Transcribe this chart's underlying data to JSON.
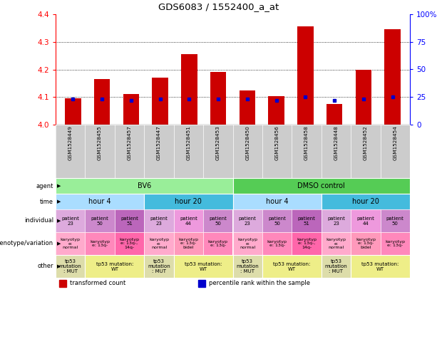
{
  "title": "GDS6083 / 1552400_a_at",
  "samples": [
    "GSM1528449",
    "GSM1528455",
    "GSM1528457",
    "GSM1528447",
    "GSM1528451",
    "GSM1528453",
    "GSM1528450",
    "GSM1528456",
    "GSM1528458",
    "GSM1528448",
    "GSM1528452",
    "GSM1528454"
  ],
  "red_values": [
    4.095,
    4.165,
    4.11,
    4.17,
    4.255,
    4.19,
    4.125,
    4.103,
    4.355,
    4.075,
    4.2,
    4.345
  ],
  "blue_pct": [
    23,
    23,
    22,
    23,
    23,
    23,
    23,
    22,
    25,
    22,
    23,
    25
  ],
  "ylim": [
    4.0,
    4.4
  ],
  "y_ticks": [
    4.0,
    4.1,
    4.2,
    4.3,
    4.4
  ],
  "right_ticks": [
    0,
    25,
    50,
    75,
    100
  ],
  "right_tick_labels": [
    "0",
    "25",
    "50",
    "75",
    "100%"
  ],
  "bar_color": "#CC0000",
  "blue_color": "#0000CC",
  "agent_groups": [
    {
      "text": "BV6",
      "span": 6,
      "color": "#99EE99"
    },
    {
      "text": "DMSO control",
      "span": 6,
      "color": "#55CC55"
    }
  ],
  "time_groups": [
    {
      "text": "hour 4",
      "span": 3,
      "color": "#AADDFF"
    },
    {
      "text": "hour 20",
      "span": 3,
      "color": "#44BBDD"
    },
    {
      "text": "hour 4",
      "span": 3,
      "color": "#AADDFF"
    },
    {
      "text": "hour 20",
      "span": 3,
      "color": "#44BBDD"
    }
  ],
  "individual_cells": [
    {
      "text": "patient\n23",
      "color": "#DDAADD"
    },
    {
      "text": "patient\n50",
      "color": "#CC88CC"
    },
    {
      "text": "patient\n51",
      "color": "#BB66BB"
    },
    {
      "text": "patient\n23",
      "color": "#DDAADD"
    },
    {
      "text": "patient\n44",
      "color": "#EE99DD"
    },
    {
      "text": "patient\n50",
      "color": "#CC88CC"
    },
    {
      "text": "patient\n23",
      "color": "#DDAADD"
    },
    {
      "text": "patient\n50",
      "color": "#CC88CC"
    },
    {
      "text": "patient\n51",
      "color": "#BB66BB"
    },
    {
      "text": "patient\n23",
      "color": "#DDAADD"
    },
    {
      "text": "patient\n44",
      "color": "#EE99DD"
    },
    {
      "text": "patient\n50",
      "color": "#CC88CC"
    }
  ],
  "genotype_cells": [
    {
      "text": "karyotyp\ne:\nnormal",
      "color": "#FFAACC"
    },
    {
      "text": "karyotyp\ne: 13q-",
      "color": "#FF88BB"
    },
    {
      "text": "karyotyp\ne: 13q-,\n14q-",
      "color": "#FF66AA"
    },
    {
      "text": "karyotyp\ne:\nnormal",
      "color": "#FFAACC"
    },
    {
      "text": "karyotyp\ne: 13q-\nbidel",
      "color": "#FF99BB"
    },
    {
      "text": "karyotyp\ne: 13q-",
      "color": "#FF88BB"
    },
    {
      "text": "karyotyp\ne:\nnormal",
      "color": "#FFAACC"
    },
    {
      "text": "karyotyp\ne: 13q-",
      "color": "#FF88BB"
    },
    {
      "text": "karyotyp\ne: 13q-,\n14q-",
      "color": "#FF66AA"
    },
    {
      "text": "karyotyp\ne:\nnormal",
      "color": "#FFAACC"
    },
    {
      "text": "karyotyp\ne: 13q-\nbidel",
      "color": "#FF99BB"
    },
    {
      "text": "karyotyp\ne: 13q-",
      "color": "#FF88BB"
    }
  ],
  "other_groups": [
    {
      "text": "tp53\nmutation\n: MUT",
      "span": 1,
      "color": "#DDDDAA"
    },
    {
      "text": "tp53 mutation:\nWT",
      "span": 2,
      "color": "#EEEE88"
    },
    {
      "text": "tp53\nmutation\n: MUT",
      "span": 1,
      "color": "#DDDDAA"
    },
    {
      "text": "tp53 mutation:\nWT",
      "span": 2,
      "color": "#EEEE88"
    },
    {
      "text": "tp53\nmutation\n: MUT",
      "span": 1,
      "color": "#DDDDAA"
    },
    {
      "text": "tp53 mutation:\nWT",
      "span": 2,
      "color": "#EEEE88"
    },
    {
      "text": "tp53\nmutation\n: MUT",
      "span": 1,
      "color": "#DDDDAA"
    },
    {
      "text": "tp53 mutation:\nWT",
      "span": 2,
      "color": "#EEEE88"
    }
  ],
  "legend": [
    {
      "color": "#CC0000",
      "label": "transformed count"
    },
    {
      "color": "#0000CC",
      "label": "percentile rank within the sample"
    }
  ],
  "row_labels": [
    "agent",
    "time",
    "individual",
    "genotype/variation",
    "other"
  ]
}
